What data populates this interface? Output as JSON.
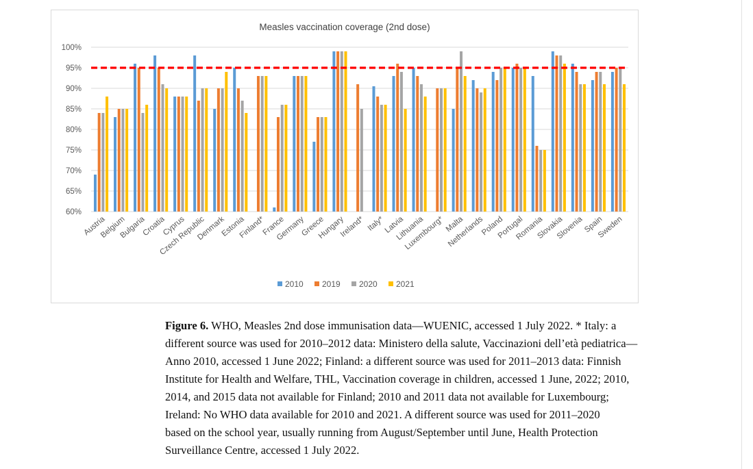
{
  "chart_data": {
    "type": "bar",
    "title": "Measles vaccination coverage (2nd dose)",
    "xlabel": "",
    "ylabel": "",
    "ylim": [
      60,
      100
    ],
    "yticks": [
      "60%",
      "65%",
      "70%",
      "75%",
      "80%",
      "85%",
      "90%",
      "95%",
      "100%"
    ],
    "ytick_values": [
      60,
      65,
      70,
      75,
      80,
      85,
      90,
      95,
      100
    ],
    "grid": true,
    "legend_position": "bottom",
    "target_line": {
      "value": 95,
      "color": "#ff0000",
      "style": "dashed"
    },
    "categories": [
      "Austria",
      "Belgium",
      "Bulgaria",
      "Croatia",
      "Cyprus",
      "Czech Republic",
      "Denmark",
      "Estonia",
      "Finland*",
      "France",
      "Germany",
      "Greece",
      "Hungary",
      "Ireland*",
      "Italy*",
      "Latvia",
      "Lithuania",
      "Luxembourg*",
      "Malta",
      "Netherlands",
      "Poland",
      "Portugal",
      "Romania",
      "Slovakia",
      "Slovenia",
      "Spain",
      "Sweden"
    ],
    "series": [
      {
        "name": "2010",
        "color": "#5b9bd5",
        "values": [
          69,
          83,
          96,
          98,
          88,
          98,
          85,
          95,
          null,
          61,
          93,
          77,
          99,
          null,
          90.5,
          93,
          95,
          null,
          85,
          92,
          94,
          95,
          93,
          99,
          96,
          92,
          94
        ]
      },
      {
        "name": "2019",
        "color": "#ed7d31",
        "values": [
          84,
          85,
          95,
          95,
          88,
          87,
          90,
          90,
          93,
          83,
          93,
          83,
          99,
          91,
          88,
          96,
          93,
          90,
          95,
          90,
          92,
          96,
          76,
          98,
          94,
          94,
          95
        ]
      },
      {
        "name": "2020",
        "color": "#a5a5a5",
        "values": [
          84,
          85,
          84,
          91,
          88,
          90,
          90,
          87,
          93,
          86,
          93,
          83,
          99,
          85,
          86,
          94,
          91,
          90,
          99,
          89,
          95,
          95,
          75,
          98,
          91,
          94,
          95
        ]
      },
      {
        "name": "2021",
        "color": "#ffc000",
        "values": [
          88,
          85,
          86,
          90,
          88,
          90,
          94,
          84,
          93,
          86,
          93,
          83,
          99,
          null,
          86,
          85,
          88,
          90,
          93,
          90,
          95,
          95,
          75,
          96,
          91,
          91,
          91
        ]
      }
    ]
  },
  "caption": {
    "label": "Figure 6.",
    "lines": [
      "WHO, Measles 2nd dose immunisation data—WUENIC, accessed 1 July 2022. * Italy: a",
      "different source was used for 2010–2012 data: Ministero della salute, Vaccinazioni dell’età pediatrica—",
      "Anno 2010, accessed 1 June 2022; Finland: a different source was used for 2011–2013 data: Finnish",
      "Institute for Health and Welfare, THL, Vaccination coverage in children, accessed 1 June, 2022; 2010,",
      "2014, and 2015 data not available for Finland; 2010 and 2011 data not available for Luxembourg;",
      "Ireland: No WHO data available for 2010 and 2021.  A different source was used for 2011–2020",
      "based on the school year, usually running from August/September until June, Health Protection",
      "Surveillance Centre, accessed 1 July 2022."
    ]
  }
}
